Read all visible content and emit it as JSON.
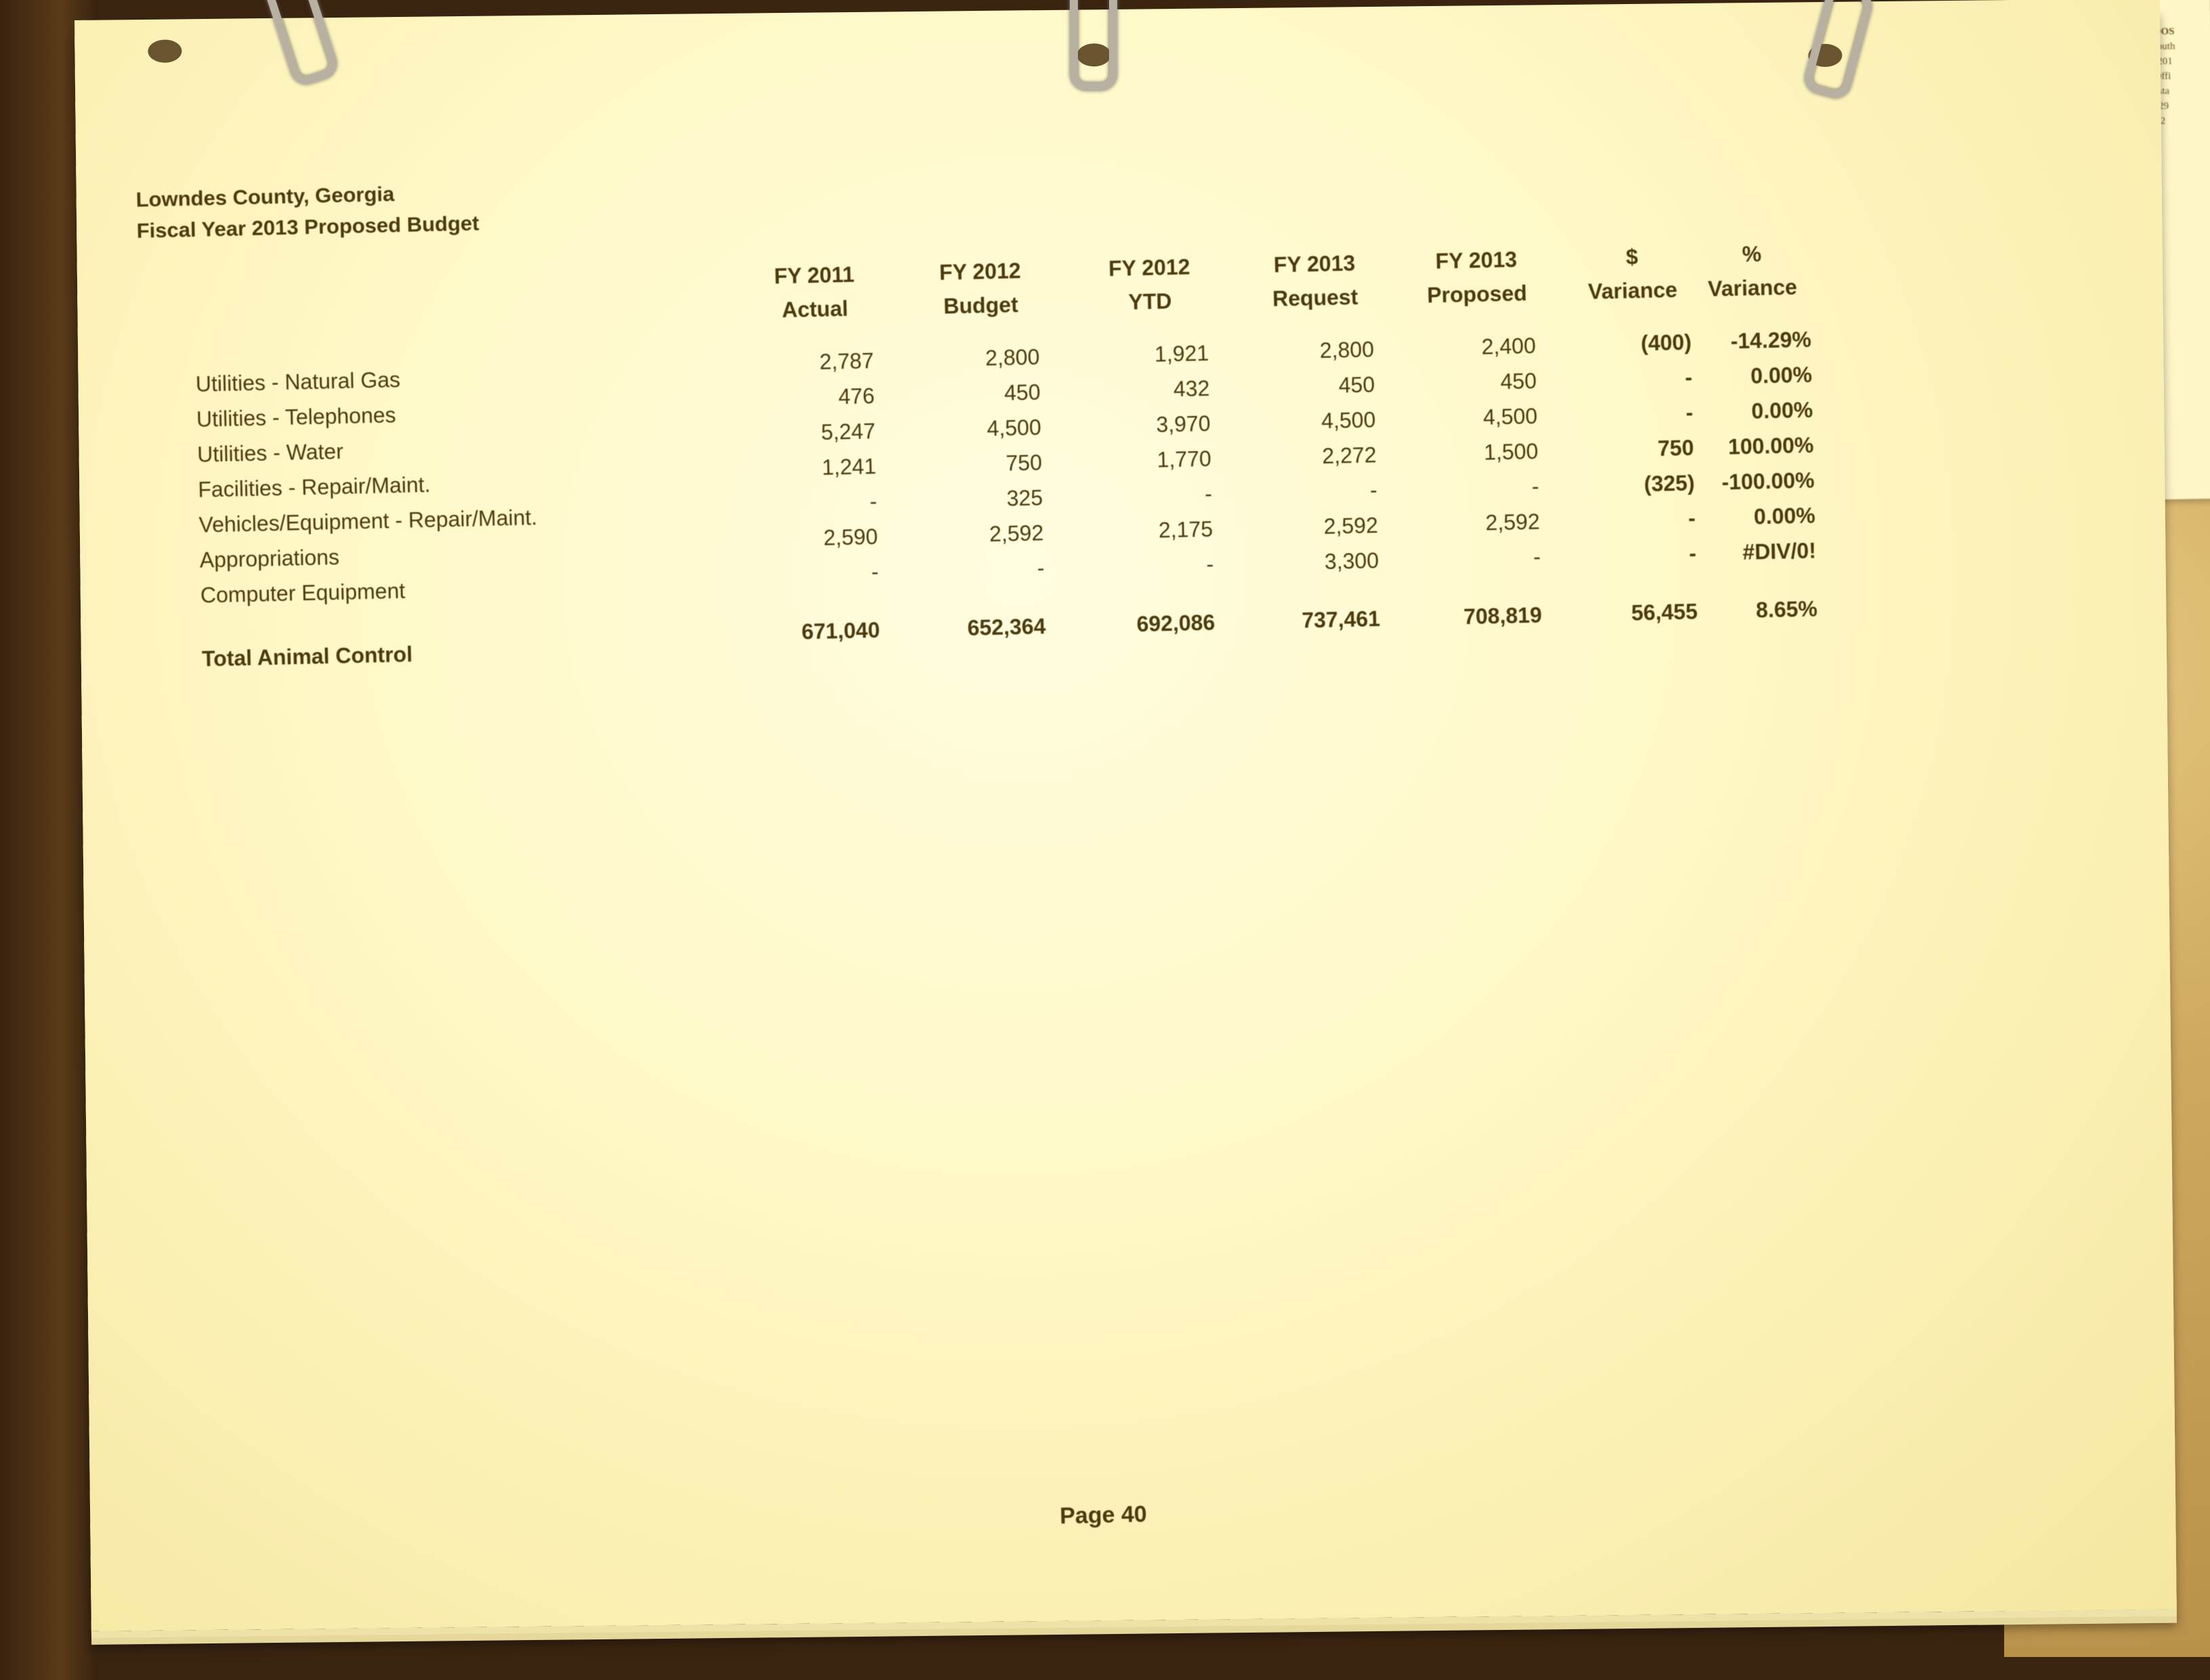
{
  "header": {
    "county": "Lowndes County, Georgia",
    "budget_title": "Fiscal Year 2013 Proposed Budget"
  },
  "columns": [
    {
      "line1": "FY 2011",
      "line2": "Actual"
    },
    {
      "line1": "FY 2012",
      "line2": "Budget"
    },
    {
      "line1": "FY 2012",
      "line2": "YTD"
    },
    {
      "line1": "FY 2013",
      "line2": "Request"
    },
    {
      "line1": "FY 2013",
      "line2": "Proposed"
    },
    {
      "line1": "$",
      "line2": "Variance"
    },
    {
      "line1": "%",
      "line2": "Variance"
    }
  ],
  "rows": [
    {
      "label": "Utilities - Natural Gas",
      "values": [
        "2,787",
        "2,800",
        "1,921",
        "2,800",
        "2,400",
        "(400)",
        "-14.29%"
      ]
    },
    {
      "label": "Utilities - Telephones",
      "values": [
        "476",
        "450",
        "432",
        "450",
        "450",
        "-",
        "0.00%"
      ]
    },
    {
      "label": "Utilities - Water",
      "values": [
        "5,247",
        "4,500",
        "3,970",
        "4,500",
        "4,500",
        "-",
        "0.00%"
      ]
    },
    {
      "label": "Facilities - Repair/Maint.",
      "values": [
        "1,241",
        "750",
        "1,770",
        "2,272",
        "1,500",
        "750",
        "100.00%"
      ]
    },
    {
      "label": "Vehicles/Equipment - Repair/Maint.",
      "values": [
        "-",
        "325",
        "-",
        "-",
        "-",
        "(325)",
        "-100.00%"
      ]
    },
    {
      "label": "Appropriations",
      "values": [
        "2,590",
        "2,592",
        "2,175",
        "2,592",
        "2,592",
        "-",
        "0.00%"
      ]
    },
    {
      "label": "Computer Equipment",
      "values": [
        "-",
        "-",
        "-",
        "3,300",
        "-",
        "-",
        "#DIV/0!"
      ]
    }
  ],
  "total": {
    "label": "Total Animal Control",
    "values": [
      "671,040",
      "652,364",
      "692,086",
      "737,461",
      "708,819",
      "56,455",
      "8.65%"
    ]
  },
  "footer": {
    "page": "Page 40"
  },
  "letterhead": {
    "office1": [
      "VALDOS",
      "106 South",
      "Suite 201",
      "Post Offi",
      "Valdosta",
      "PH (229",
      "FAX (2"
    ],
    "office2": [
      "MOU",
      "Colqu",
      "9 Sou",
      "Moul",
      "PH (",
      "FAX"
    ]
  },
  "colors": {
    "ink": "#4b3a0e",
    "paper": "#fff7c4"
  }
}
